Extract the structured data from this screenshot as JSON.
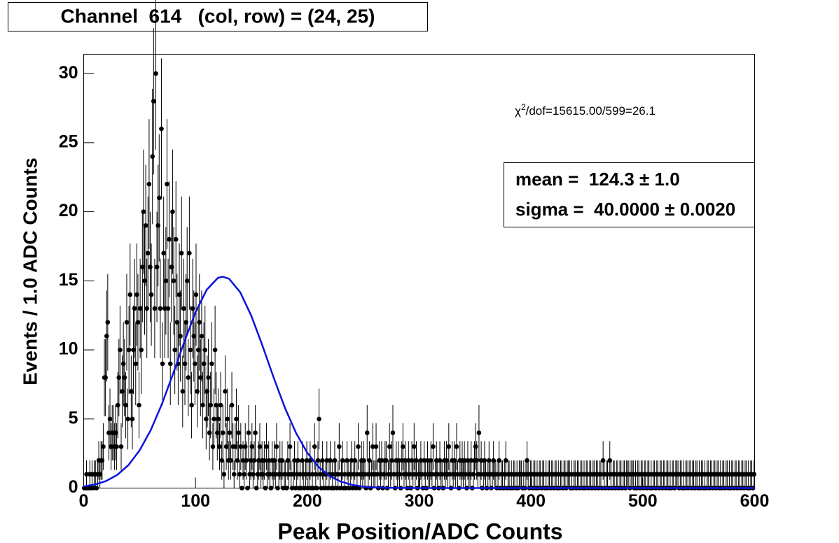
{
  "chart_data": {
    "type": "histogram",
    "title": "Channel  614   (col, row) = (24, 25)",
    "xlabel": "Peak Position/ADC Counts",
    "ylabel": "Events / 1.0 ADC Counts",
    "chi2_symbol": "χ",
    "chi2_power": "2",
    "chi2_text": "/dof=15615.00/599=26.1",
    "stats": [
      "mean =  124.3 ± 1.0",
      "sigma =  40.0000 ± 0.0020"
    ],
    "xlim": [
      0,
      600
    ],
    "xticks": [
      0,
      100,
      200,
      300,
      400,
      500,
      600
    ],
    "ylim": [
      0,
      31.4
    ],
    "yticks": [
      0,
      5,
      10,
      15,
      20,
      25,
      30
    ],
    "color": "#000000",
    "bins": [
      0,
      1,
      2,
      3,
      4,
      5,
      6,
      7,
      8,
      9,
      10,
      11,
      12,
      13,
      14,
      15,
      16,
      17,
      18,
      19,
      20,
      21,
      22,
      23,
      24,
      25,
      26,
      27,
      28,
      29,
      30,
      31,
      32,
      33,
      34,
      35,
      36,
      37,
      38,
      39,
      40,
      41,
      42,
      43,
      44,
      45,
      46,
      47,
      48,
      49,
      50,
      51,
      52,
      53,
      54,
      55,
      56,
      57,
      58,
      59,
      60,
      61,
      62,
      63,
      64,
      65,
      66,
      67,
      68,
      69,
      70,
      71,
      72,
      73,
      74,
      75,
      76,
      77,
      78,
      79,
      80,
      81,
      82,
      83,
      84,
      85,
      86,
      87,
      88,
      89,
      90,
      91,
      92,
      93,
      94,
      95,
      96,
      97,
      98,
      99,
      100,
      101,
      102,
      103,
      104,
      105,
      106,
      107,
      108,
      109,
      110,
      111,
      112,
      113,
      114,
      115,
      116,
      117,
      118,
      119,
      120,
      121,
      122,
      123,
      124,
      125,
      126,
      127,
      128,
      129,
      130,
      131,
      132,
      133,
      134,
      135,
      136,
      137,
      138,
      139,
      140,
      141,
      142,
      143,
      144,
      145,
      146,
      147,
      148,
      149,
      150,
      151,
      152,
      153,
      154,
      155,
      156,
      157,
      158,
      159,
      160,
      161,
      162,
      163,
      164,
      165,
      166,
      167,
      168,
      169,
      170,
      171,
      172,
      173,
      174,
      175,
      176,
      177,
      178,
      179,
      180,
      181,
      182,
      183,
      184,
      185,
      186,
      187,
      188,
      189,
      190,
      191,
      192,
      193,
      194,
      195,
      196,
      197,
      198,
      199,
      200,
      201,
      202,
      203,
      204,
      205,
      206,
      207,
      208,
      209,
      210,
      211,
      212,
      213,
      214,
      215,
      216,
      217,
      218,
      219,
      220,
      221,
      222,
      223,
      224,
      225,
      226,
      227,
      228,
      229,
      230,
      231,
      232,
      233,
      234,
      235,
      236,
      237,
      238,
      239,
      240,
      241,
      242,
      243,
      244,
      245,
      246,
      247,
      248,
      249,
      250,
      251,
      252,
      253,
      254,
      255,
      256,
      257,
      258,
      259,
      260,
      261,
      262,
      263,
      264,
      265,
      266,
      267,
      268,
      269,
      270,
      271,
      272,
      273,
      274,
      275,
      276,
      277,
      278,
      279,
      280,
      281,
      282,
      283,
      284,
      285,
      286,
      287,
      288,
      289,
      290,
      291,
      292,
      293,
      294,
      295,
      296,
      297,
      298,
      299,
      300,
      301,
      302,
      303,
      304,
      305,
      306,
      307,
      308,
      309,
      310,
      311,
      312,
      313,
      314,
      315,
      316,
      317,
      318,
      319,
      320,
      321,
      322,
      323,
      324,
      325,
      326,
      327,
      328,
      329,
      330,
      331,
      332,
      333,
      334,
      335,
      336,
      337,
      338,
      339,
      340,
      341,
      342,
      343,
      344,
      345,
      346,
      347,
      348,
      349,
      350,
      351,
      352,
      353,
      354,
      355,
      356,
      357,
      358,
      359,
      360,
      361,
      362,
      363,
      364,
      365,
      366,
      367,
      368,
      369,
      370,
      371,
      372,
      373,
      374,
      375,
      376,
      377,
      378,
      379,
      380,
      381,
      382,
      383,
      384,
      385,
      386,
      387,
      388,
      389,
      390,
      391,
      392,
      393,
      394,
      395,
      396,
      397,
      398,
      399,
      400,
      401,
      402,
      403,
      404,
      405,
      406,
      407,
      408,
      409,
      410,
      411,
      412,
      413,
      414,
      415,
      416,
      417,
      418,
      419,
      420,
      421,
      422,
      423,
      424,
      425,
      426,
      427,
      428,
      429,
      430,
      431,
      432,
      433,
      434,
      435,
      436,
      437,
      438,
      439,
      440,
      441,
      442,
      443,
      444,
      445,
      446,
      447,
      448,
      449,
      450,
      451,
      452,
      453,
      454,
      455,
      456,
      457,
      458,
      459,
      460,
      461,
      462,
      463,
      464,
      465,
      466,
      467,
      468,
      469,
      470,
      471,
      472,
      473,
      474,
      475,
      476,
      477,
      478,
      479,
      480,
      481,
      482,
      483,
      484,
      485,
      486,
      487,
      488,
      489,
      490,
      491,
      492,
      493,
      494,
      495,
      496,
      497,
      498,
      499,
      500,
      501,
      502,
      503,
      504,
      505,
      506,
      507,
      508,
      509,
      510,
      511,
      512,
      513,
      514,
      515,
      516,
      517,
      518,
      519,
      520,
      521,
      522,
      523,
      524,
      525,
      526,
      527,
      528,
      529,
      530,
      531,
      532,
      533,
      534,
      535,
      536,
      537,
      538,
      539,
      540,
      541,
      542,
      543,
      544,
      545,
      546,
      547,
      548,
      549,
      550,
      551,
      552,
      553,
      554,
      555,
      556,
      557,
      558,
      559,
      560,
      561,
      562,
      563,
      564,
      565,
      566,
      567,
      568,
      569,
      570,
      571,
      572,
      573,
      574,
      575,
      576,
      577,
      578,
      579,
      580,
      581,
      582,
      583,
      584,
      585,
      586,
      587,
      588,
      589,
      590,
      591,
      592,
      593,
      594,
      595,
      596,
      597,
      598,
      599,
      600
    ],
    "values": [
      0,
      0,
      1,
      0,
      0,
      1,
      0,
      1,
      0,
      1,
      1,
      0,
      1,
      2,
      1,
      2,
      2,
      3,
      8,
      8,
      11,
      12,
      4,
      5,
      3,
      4,
      4,
      3,
      4,
      3,
      6,
      8,
      10,
      3,
      7,
      9,
      8,
      6,
      12,
      5,
      10,
      14,
      7,
      5,
      10,
      13,
      9,
      14,
      12,
      6,
      13,
      10,
      16,
      20,
      15,
      19,
      13,
      17,
      22,
      16,
      14,
      24,
      28,
      13,
      30,
      16,
      19,
      21,
      13,
      26,
      9,
      17,
      13,
      15,
      22,
      13,
      18,
      9,
      16,
      20,
      15,
      10,
      18,
      12,
      9,
      14,
      11,
      17,
      7,
      13,
      9,
      12,
      15,
      8,
      17,
      10,
      6,
      13,
      11,
      9,
      14,
      7,
      10,
      12,
      8,
      11,
      6,
      9,
      10,
      5,
      7,
      8,
      4,
      6,
      9,
      3,
      5,
      10,
      6,
      4,
      5,
      3,
      6,
      2,
      4,
      1,
      7,
      3,
      5,
      2,
      4,
      2,
      6,
      3,
      1,
      3,
      5,
      2,
      4,
      1,
      3,
      0,
      2,
      1,
      3,
      2,
      0,
      4,
      1,
      2,
      3,
      1,
      2,
      4,
      0,
      1,
      2,
      3,
      1,
      2,
      1,
      2,
      0,
      3,
      1,
      2,
      1,
      0,
      2,
      1,
      2,
      1,
      3,
      0,
      1,
      2,
      1,
      2,
      0,
      1,
      1,
      0,
      2,
      1,
      3,
      1,
      0,
      1,
      2,
      0,
      1,
      2,
      0,
      1,
      0,
      2,
      1,
      0,
      1,
      2,
      0,
      1,
      2,
      0,
      1,
      0,
      3,
      1,
      0,
      2,
      5,
      1,
      0,
      2,
      1,
      0,
      1,
      2,
      0,
      1,
      2,
      0,
      1,
      0,
      2,
      1,
      0,
      1,
      3,
      0,
      1,
      2,
      0,
      1,
      0,
      2,
      1,
      0,
      1,
      2,
      0,
      1,
      2,
      0,
      1,
      3,
      0,
      1,
      2,
      1,
      2,
      1,
      0,
      4,
      1,
      2,
      0,
      1,
      3,
      1,
      1,
      3,
      1,
      0,
      2,
      1,
      2,
      0,
      1,
      2,
      2,
      0,
      1,
      3,
      1,
      2,
      4,
      1,
      0,
      2,
      1,
      2,
      1,
      0,
      2,
      3,
      1,
      2,
      1,
      0,
      2,
      1,
      0,
      2,
      1,
      3,
      1,
      2,
      0,
      1,
      1,
      2,
      1,
      0,
      2,
      1,
      0,
      2,
      1,
      1,
      2,
      1,
      3,
      0,
      1,
      2,
      1,
      0,
      2,
      1,
      1,
      0,
      2,
      1,
      2,
      1,
      3,
      1,
      0,
      2,
      1,
      2,
      1,
      3,
      1,
      0,
      2,
      1,
      2,
      1,
      2,
      1,
      0,
      2,
      1,
      1,
      2,
      0,
      1,
      2,
      3,
      2,
      1,
      4,
      1,
      2,
      0,
      1,
      2,
      1,
      0,
      1,
      2,
      1,
      0,
      1,
      2,
      1,
      1,
      0,
      1,
      2,
      0,
      1,
      1,
      0,
      1,
      2,
      0,
      1,
      1,
      0,
      1,
      0,
      1,
      1,
      0,
      1,
      0,
      1,
      1,
      1,
      0,
      1,
      0,
      1,
      2,
      1,
      0,
      1,
      1,
      0,
      1,
      1,
      0,
      1,
      0,
      1,
      1,
      0,
      1,
      1,
      0,
      1,
      0,
      1,
      1,
      0,
      1,
      1,
      0,
      1,
      1,
      0,
      1,
      0,
      1,
      1,
      0,
      1,
      1,
      0,
      1,
      1,
      1,
      0,
      1,
      0,
      1,
      1,
      0,
      1,
      1,
      0,
      1,
      1,
      0,
      1,
      0,
      1,
      1,
      0,
      1,
      1,
      0,
      1,
      1,
      0,
      1,
      1,
      0,
      1,
      1,
      0,
      2,
      1,
      0,
      1,
      1,
      0,
      2,
      1,
      0,
      1,
      1,
      0,
      1,
      1,
      0,
      1,
      1,
      0,
      1,
      1,
      0,
      1,
      1,
      1,
      0,
      1,
      1,
      1,
      0,
      1,
      0,
      1,
      1,
      0,
      1,
      1,
      0,
      1,
      1,
      0,
      1,
      1,
      0,
      1,
      0,
      1,
      1,
      0,
      1,
      1,
      0,
      1,
      1,
      0,
      1,
      1,
      0,
      1,
      1,
      0,
      1,
      0,
      1,
      1,
      0,
      1,
      1,
      1,
      0,
      1,
      1,
      0,
      1,
      0,
      1,
      1,
      0,
      1,
      1,
      0,
      1,
      1,
      0,
      1,
      1,
      0,
      1,
      0,
      1,
      1,
      0,
      1,
      0,
      1,
      1,
      0,
      1,
      1,
      0,
      1,
      1,
      0,
      1,
      1,
      0,
      1,
      0,
      1,
      1,
      0,
      1,
      1,
      0,
      1,
      0,
      1,
      1,
      0,
      1,
      1,
      0,
      1,
      1,
      0,
      1,
      1,
      0,
      1,
      1,
      0,
      1,
      0,
      1,
      1,
      0,
      1
    ],
    "errors": [
      0,
      0,
      1,
      0,
      0,
      1,
      0,
      1,
      0,
      1,
      1,
      0,
      1,
      1.4,
      1,
      1.4,
      1.4,
      1.7,
      2.8,
      2.8,
      3.3,
      3.5,
      2,
      2.2,
      1.7,
      2,
      2,
      1.7,
      2,
      1.7,
      2.4,
      2.8,
      3.2,
      1.7,
      2.6,
      3,
      2.8,
      2.4,
      3.5,
      2.2,
      3.2,
      3.7,
      2.6,
      2.2,
      3.2,
      3.6,
      3,
      3.7,
      3.5,
      2.4,
      3.6,
      3.2,
      4,
      4.5,
      3.9,
      4.4,
      3.6,
      4.1,
      4.7,
      4,
      3.7,
      4.9,
      5.3,
      3.6,
      5.5,
      4,
      4.4,
      4.6,
      3.6,
      5.1,
      3,
      4.1,
      3.6,
      3.9,
      4.7,
      3.6,
      4.2,
      3,
      4,
      4.5,
      3.9,
      3.2,
      4.2,
      3.5,
      3,
      3.7,
      3.3,
      4.1,
      2.6,
      3.6,
      3,
      3.5,
      3.9,
      2.8,
      4.1,
      3.2,
      2.4,
      3.6,
      3.3,
      3,
      3.7,
      2.6,
      3.2,
      3.5,
      2.8,
      3.3,
      2.4,
      3,
      3.2,
      2.2,
      2.6,
      2.8,
      2,
      2.4,
      3,
      1.7,
      2.2,
      3.2,
      2.4,
      2,
      2.2,
      1.7,
      2.4,
      1.4,
      2,
      1,
      2.6,
      1.7,
      2.2,
      1.4,
      2,
      1.4,
      2.4,
      1.7,
      1,
      1.7,
      2.2,
      1.4,
      2,
      1,
      1.7,
      0,
      1.4,
      1,
      1.7,
      1.4,
      0,
      2,
      1,
      1.4,
      1.7,
      1,
      1.4,
      2,
      0,
      1,
      1.4,
      1.7,
      1,
      1.4,
      1,
      1.4,
      0,
      1.7,
      1,
      1.4,
      1,
      0,
      1.4,
      1,
      1.4,
      1,
      1.7,
      0,
      1,
      1.4,
      1,
      1.4,
      0,
      1,
      1,
      0,
      1.4,
      1,
      1.7,
      1,
      0,
      1,
      1.4,
      0,
      1,
      1.4,
      0,
      1,
      0,
      1.4,
      1,
      0,
      1,
      1.4,
      0,
      1,
      1.4,
      0,
      1,
      0,
      1.7,
      1,
      0,
      1.4,
      2.2,
      1,
      0,
      1.4,
      1,
      0,
      1,
      1.4,
      0,
      1,
      1.4,
      0,
      1,
      0,
      1.4,
      1,
      0,
      1,
      1.7,
      0,
      1,
      1.4,
      0,
      1,
      0,
      1.4,
      1,
      0,
      1,
      1.4,
      0,
      1,
      1.4,
      0,
      1,
      1.7,
      0,
      1,
      1.4,
      1,
      1.4,
      1,
      0,
      2,
      1,
      1.4,
      0,
      1,
      1.7,
      1,
      1,
      1.7,
      1,
      0,
      1.4,
      1,
      1.4,
      0,
      1,
      1.4,
      1.4,
      0,
      1,
      1.7,
      1,
      1.4,
      2,
      1,
      0,
      1.4,
      1,
      1.4,
      1,
      0,
      1.4,
      1.7,
      1,
      1.4,
      1,
      0,
      1.4,
      1,
      0,
      1.4,
      1,
      1.7,
      1,
      1.4,
      0,
      1,
      1,
      1.4,
      1,
      0,
      1.4,
      1,
      0,
      1.4,
      1,
      1,
      1.4,
      1,
      1.7,
      0,
      1,
      1.4,
      1,
      0,
      1.4,
      1,
      1,
      0,
      1.4,
      1,
      1.4,
      1,
      1.7,
      1,
      0,
      1.4,
      1,
      1.4,
      1,
      1.7,
      1,
      0,
      1.4,
      1,
      1.4,
      1,
      1.4,
      1,
      0,
      1.4,
      1,
      1,
      1.4,
      0,
      1,
      1.4,
      1.7,
      1.4,
      1,
      2,
      1,
      1.4,
      0,
      1,
      1.4,
      1,
      0,
      1,
      1.4,
      1,
      0,
      1,
      1.4,
      1,
      1,
      0,
      1,
      1.4,
      0,
      1,
      1,
      0,
      1,
      1.4,
      0,
      1,
      1,
      0,
      1,
      0,
      1,
      1,
      0,
      1,
      0,
      1,
      1,
      1,
      0,
      1,
      0,
      1,
      1.4,
      1,
      0,
      1,
      1,
      0,
      1,
      1,
      0,
      1,
      0,
      1,
      1,
      0,
      1,
      1,
      0,
      1,
      0,
      1,
      1,
      0,
      1,
      1,
      0,
      1,
      1,
      0,
      1,
      0,
      1,
      1,
      0,
      1,
      1,
      0,
      1,
      1,
      1,
      0,
      1,
      0,
      1,
      1,
      0,
      1,
      1,
      0,
      1,
      1,
      0,
      1,
      0,
      1,
      1,
      0,
      1,
      1,
      0,
      1,
      1,
      0,
      1,
      1,
      0,
      1,
      1,
      0,
      1.4,
      1,
      0,
      1,
      1,
      0,
      1.4,
      1,
      0,
      1,
      1,
      0,
      1,
      1,
      0,
      1,
      1,
      0,
      1,
      1,
      0,
      1,
      1,
      1,
      0,
      1,
      1,
      1,
      0,
      1,
      0,
      1,
      1,
      0,
      1,
      1,
      0,
      1,
      1,
      0,
      1,
      1,
      0,
      1,
      0,
      1,
      1,
      0,
      1,
      1,
      0,
      1,
      1,
      0,
      1,
      1,
      0,
      1,
      1,
      0,
      1,
      0,
      1,
      1,
      0,
      1,
      1,
      1,
      0,
      1,
      1,
      0,
      1,
      0,
      1,
      1,
      0,
      1,
      1,
      0,
      1,
      1,
      0,
      1,
      1,
      0,
      1,
      0,
      1,
      1,
      0,
      1,
      0,
      1,
      1,
      0,
      1,
      1,
      0,
      1,
      1,
      0,
      1,
      1,
      0,
      1,
      0,
      1,
      1,
      0,
      1,
      1,
      0,
      1,
      0,
      1,
      1,
      0,
      1,
      1,
      0,
      1,
      1,
      0,
      1,
      1,
      0,
      1,
      1,
      0,
      1,
      0,
      1,
      1,
      0,
      1
    ],
    "fit": {
      "color": "#0a14dc",
      "x": [
        0,
        10,
        20,
        30,
        40,
        50,
        60,
        70,
        80,
        90,
        100,
        110,
        120,
        124.3,
        130,
        140,
        150,
        160,
        170,
        180,
        190,
        200,
        210,
        220,
        230,
        240,
        250,
        260,
        270,
        280,
        300,
        350,
        400,
        450,
        500,
        550,
        600
      ],
      "values": [
        0.12,
        0.26,
        0.51,
        0.95,
        1.66,
        2.73,
        4.2,
        6.09,
        8.29,
        10.59,
        12.73,
        14.35,
        15.21,
        15.3,
        15.15,
        14.17,
        12.45,
        10.28,
        7.97,
        5.8,
        3.97,
        2.55,
        1.53,
        0.87,
        0.47,
        0.23,
        0.11,
        0.05,
        0.02,
        0.01,
        0,
        0,
        0,
        0,
        0,
        0,
        0
      ]
    }
  }
}
